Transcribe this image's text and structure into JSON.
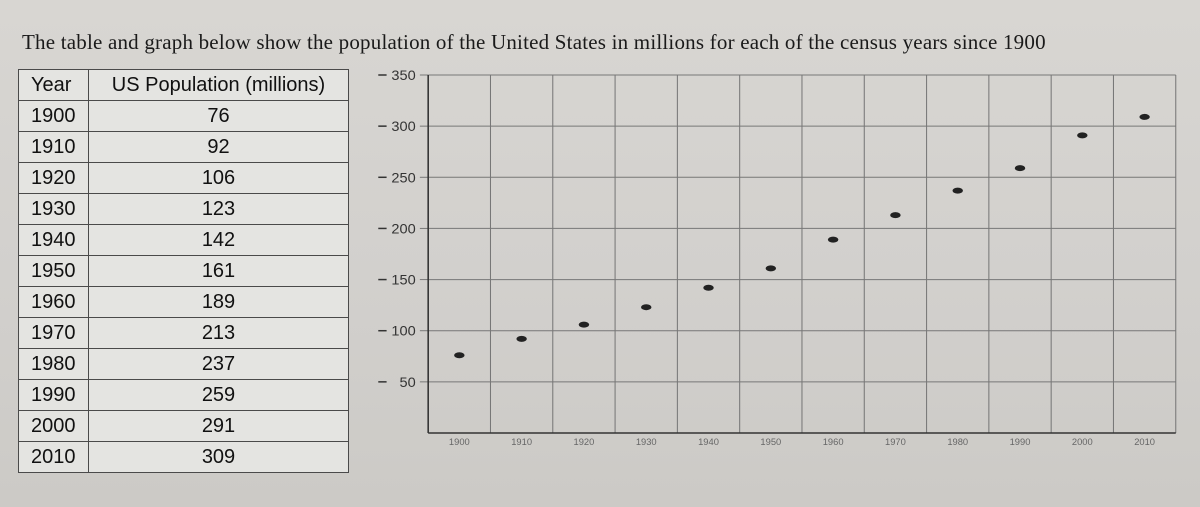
{
  "heading": "The table and graph below show the population of the United States in millions for each of the census years since 1900",
  "table": {
    "col1": "Year",
    "col2": "US Population (millions)",
    "rows": [
      {
        "year": "1900",
        "pop": "76"
      },
      {
        "year": "1910",
        "pop": "92"
      },
      {
        "year": "1920",
        "pop": "106"
      },
      {
        "year": "1930",
        "pop": "123"
      },
      {
        "year": "1940",
        "pop": "142"
      },
      {
        "year": "1950",
        "pop": "161"
      },
      {
        "year": "1960",
        "pop": "189"
      },
      {
        "year": "1970",
        "pop": "213"
      },
      {
        "year": "1980",
        "pop": "237"
      },
      {
        "year": "1990",
        "pop": "259"
      },
      {
        "year": "2000",
        "pop": "291"
      },
      {
        "year": "2010",
        "pop": "309"
      }
    ]
  },
  "chart": {
    "type": "scatter",
    "ylim": [
      0,
      350
    ],
    "ytick_step": 50,
    "yticks": [
      50,
      100,
      150,
      200,
      250,
      300,
      350
    ],
    "xlim": [
      0,
      12
    ],
    "x_categories": [
      "1900",
      "1910",
      "1920",
      "1930",
      "1940",
      "1950",
      "1960",
      "1970",
      "1980",
      "1990",
      "2000",
      "2010"
    ],
    "values": [
      76,
      92,
      106,
      123,
      142,
      161,
      189,
      213,
      237,
      259,
      291,
      309
    ],
    "grid_color": "#777777",
    "axis_color": "#333333",
    "point_color": "#222222",
    "point_radius_x": 5,
    "point_radius_y": 3,
    "background_color": "transparent",
    "tick_font_size": 14,
    "xtick_font_size": 9,
    "font_family": "Arial"
  }
}
